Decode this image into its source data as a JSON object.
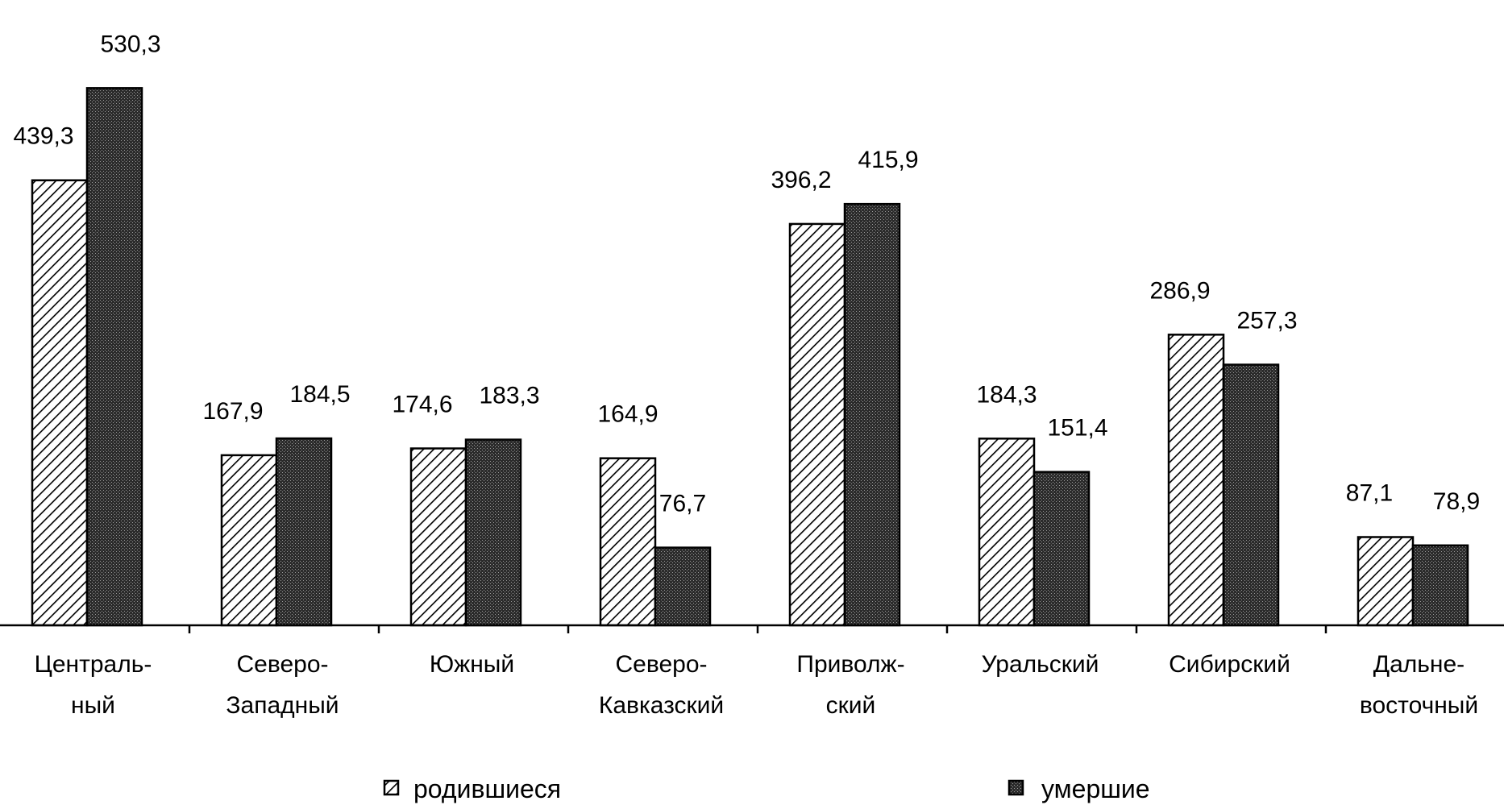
{
  "chart_data": {
    "type": "bar",
    "title": "",
    "xlabel": "",
    "ylabel": "",
    "ylim": [
      0,
      560
    ],
    "grid": false,
    "legend_position": "bottom",
    "categories": [
      [
        "Централь-",
        "ный"
      ],
      [
        "Северо-",
        "Западный"
      ],
      [
        "Южный"
      ],
      [
        "Северо-",
        "Кавказский"
      ],
      [
        "Приволж-",
        "ский"
      ],
      [
        "Уральский"
      ],
      [
        "Сибирский"
      ],
      [
        "Дальне-",
        "восточный"
      ]
    ],
    "series": [
      {
        "name": "родившиеся",
        "pattern": "diagonal-hatch",
        "values": [
          439.3,
          167.9,
          174.6,
          164.9,
          396.2,
          184.3,
          286.9,
          87.1
        ],
        "labels": [
          "439,3",
          "167,9",
          "174,6",
          "164,9",
          "396,2",
          "184,3",
          "286,9",
          "87,1"
        ]
      },
      {
        "name": "умершие",
        "pattern": "dense-crosshatch",
        "values": [
          530.3,
          184.5,
          183.3,
          76.7,
          415.9,
          151.4,
          257.3,
          78.9
        ],
        "labels": [
          "530,3",
          "184,5",
          "183,3",
          "76,7",
          "415,9",
          "151,4",
          "257,3",
          "78,9"
        ]
      }
    ]
  }
}
